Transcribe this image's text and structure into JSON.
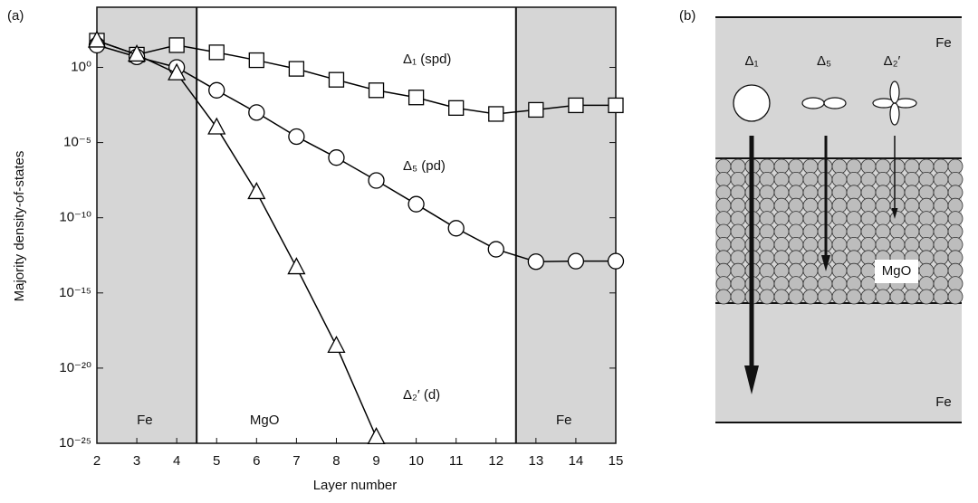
{
  "chart_data": {
    "type": "line",
    "panel_label": "(a)",
    "x_label": "Layer number",
    "y_label": "Majority density-of-states",
    "log_y": true,
    "x": [
      2,
      3,
      4,
      5,
      6,
      7,
      8,
      9,
      10,
      11,
      12,
      13,
      14,
      15
    ],
    "xlim": [
      2,
      15
    ],
    "xticks": [
      2,
      3,
      4,
      5,
      6,
      7,
      8,
      9,
      10,
      11,
      12,
      13,
      14,
      15
    ],
    "ylim": [
      1e-25,
      10000
    ],
    "yticks": [
      {
        "value": 1,
        "label": "10⁰"
      },
      {
        "value": 1e-05,
        "label": "10⁻⁵"
      },
      {
        "value": 1e-10,
        "label": "10⁻¹⁰"
      },
      {
        "value": 1e-15,
        "label": "10⁻¹⁵"
      },
      {
        "value": 1e-20,
        "label": "10⁻²⁰"
      },
      {
        "value": 1e-25,
        "label": "10⁻²⁵"
      }
    ],
    "shaded_regions": [
      [
        2,
        4.5
      ],
      [
        12.5,
        15
      ]
    ],
    "region_color": "#d6d6d6",
    "region_labels": [
      "Fe",
      "MgO",
      "Fe"
    ],
    "series": [
      {
        "name": "Δ₁ (spd)",
        "marker": "square",
        "color": "#000000",
        "values": [
          60,
          7,
          30,
          10,
          3,
          0.8,
          0.15,
          0.03,
          0.01,
          0.002,
          0.0008,
          0.0015,
          0.003,
          0.003
        ]
      },
      {
        "name": "Δ₅ (pd)",
        "marker": "circle",
        "color": "#000000",
        "values": [
          30,
          5,
          1,
          0.03,
          0.001,
          2.5e-05,
          1e-06,
          3e-08,
          8e-10,
          2e-11,
          8e-13,
          1.2e-13,
          1.3e-13,
          1.3e-13
        ]
      },
      {
        "name": "Δ₂′ (d)",
        "marker": "triangle",
        "color": "#000000",
        "values": [
          60,
          7,
          0.4,
          0.0001,
          5e-09,
          5e-14,
          3e-19,
          2.5e-25,
          null,
          null,
          null,
          null,
          null,
          null
        ]
      }
    ]
  },
  "panel_b": {
    "panel_label": "(b)",
    "top_label": "Fe",
    "bottom_label": "Fe",
    "barrier_label": "MgO",
    "symmetries": [
      "Δ₁",
      "Δ₅",
      "Δ₂′"
    ]
  }
}
